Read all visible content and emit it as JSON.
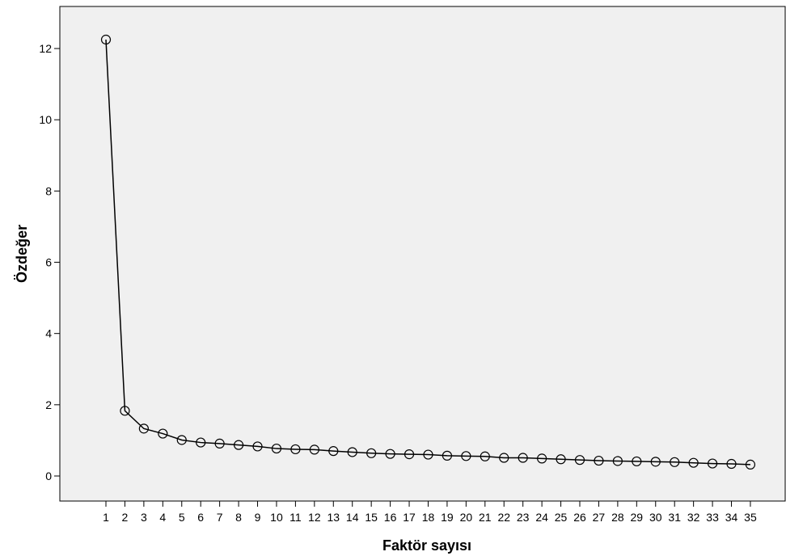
{
  "chart_data": {
    "type": "line",
    "title": "",
    "xlabel": "Faktör sayısı",
    "ylabel": "Özdeğer",
    "x": [
      1,
      2,
      3,
      4,
      5,
      6,
      7,
      8,
      9,
      10,
      11,
      12,
      13,
      14,
      15,
      16,
      17,
      18,
      19,
      20,
      21,
      22,
      23,
      24,
      25,
      26,
      27,
      28,
      29,
      30,
      31,
      32,
      33,
      34,
      35
    ],
    "series": [
      {
        "values": [
          12.25,
          1.83,
          1.33,
          1.19,
          1.01,
          0.94,
          0.91,
          0.87,
          0.83,
          0.77,
          0.75,
          0.74,
          0.7,
          0.67,
          0.64,
          0.62,
          0.61,
          0.6,
          0.57,
          0.56,
          0.55,
          0.51,
          0.51,
          0.49,
          0.47,
          0.45,
          0.43,
          0.42,
          0.41,
          0.4,
          0.39,
          0.37,
          0.35,
          0.34,
          0.32
        ],
        "marker": "open-circle",
        "color": "#000000"
      }
    ],
    "xlim": [
      1,
      35
    ],
    "ylim": [
      -0.65,
      13.2
    ],
    "yticks": [
      0,
      2,
      4,
      6,
      8,
      10,
      12
    ],
    "xticks": [
      1,
      2,
      3,
      4,
      5,
      6,
      7,
      8,
      9,
      10,
      11,
      12,
      13,
      14,
      15,
      16,
      17,
      18,
      19,
      20,
      21,
      22,
      23,
      24,
      25,
      26,
      27,
      28,
      29,
      30,
      31,
      32,
      33,
      34,
      35
    ],
    "grid": false,
    "legend": "none",
    "plot_background": "#f0f0f0",
    "line_color": "#000000"
  }
}
